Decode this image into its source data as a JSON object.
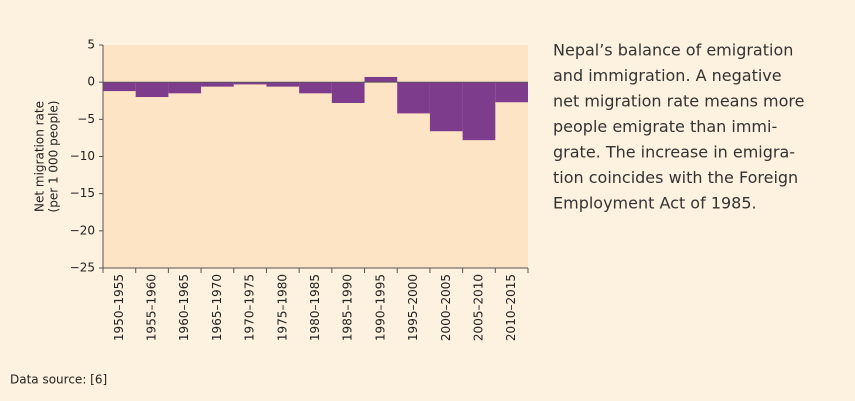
{
  "chart_data": {
    "type": "bar",
    "y_label_lines": [
      "Net migration rate",
      "(per 1 000 people)"
    ],
    "categories": [
      "1950–1955",
      "1955–1960",
      "1960–1965",
      "1965–1970",
      "1970–1975",
      "1975–1980",
      "1980–1985",
      "1985–1990",
      "1990–1995",
      "1995–2000",
      "2000–2005",
      "2005–2010",
      "2010–2015"
    ],
    "values": [
      -1.2,
      -2.0,
      -1.5,
      -0.6,
      -0.3,
      -0.6,
      -1.5,
      -2.8,
      0.7,
      -4.2,
      -6.6,
      -7.8,
      -2.7
    ],
    "color": "#7d3c8c",
    "ylim": [
      -25,
      5
    ],
    "yticks": [
      5,
      0,
      {
        "value": -5,
        "label": "−5"
      },
      {
        "value": -10,
        "label": "−10"
      },
      {
        "value": -15,
        "label": "−15"
      },
      {
        "value": -20,
        "label": "−20"
      },
      {
        "value": -25,
        "label": "−25"
      }
    ],
    "caption_lines": [
      "Nepal’s balance of emigration",
      "and immigration. A negative",
      "net migration rate means more",
      "people emigrate than immi-",
      "grate. The increase in emigra-",
      "tion coincides with the Foreign",
      "Employment Act of 1985."
    ],
    "source": "Data source: [6]"
  }
}
